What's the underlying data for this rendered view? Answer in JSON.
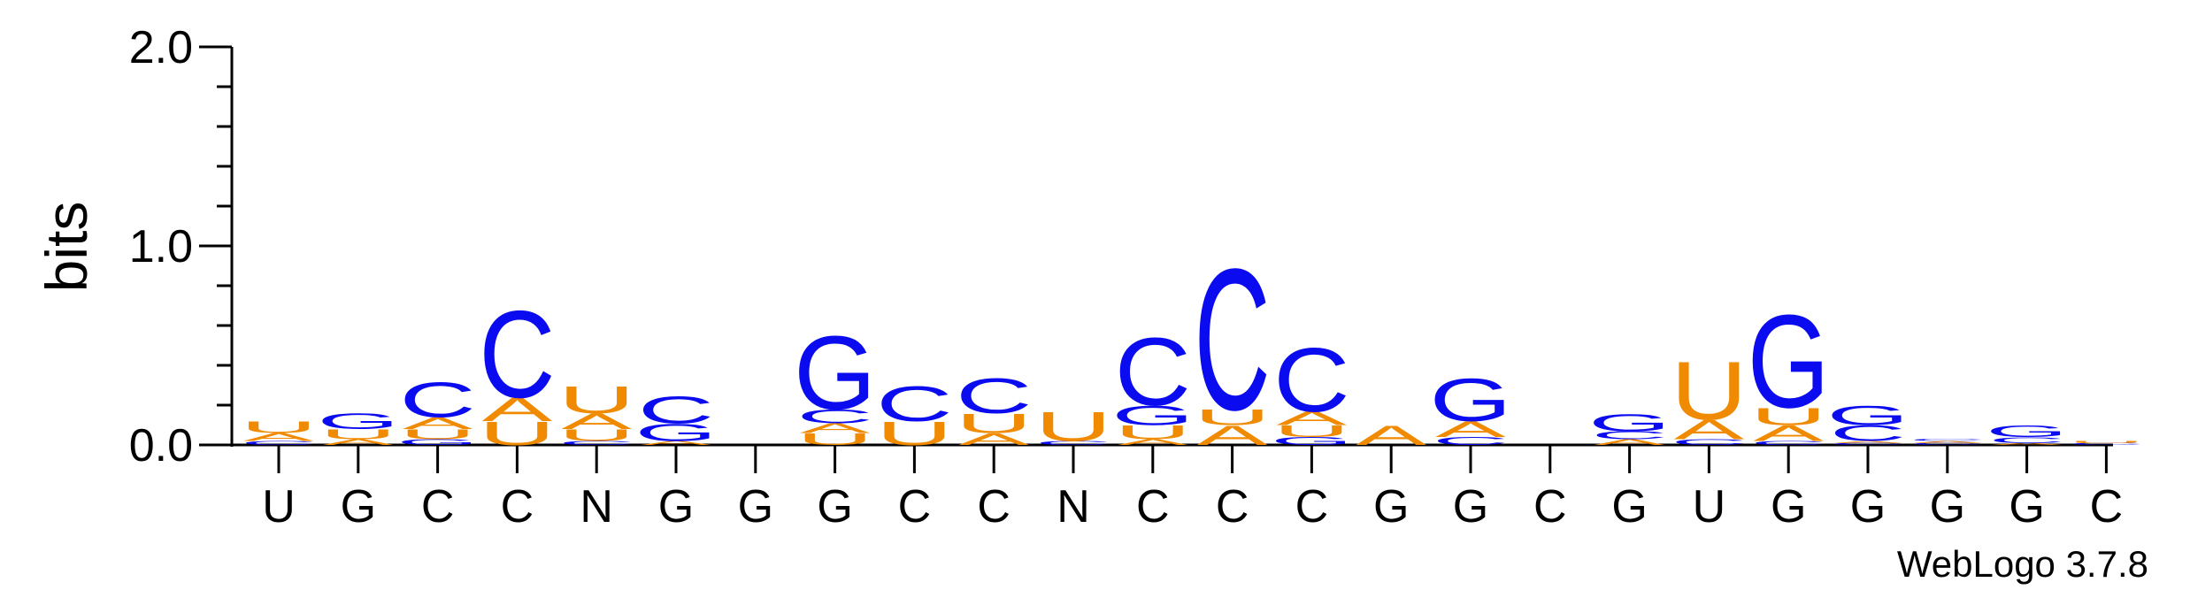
{
  "chart_data": {
    "type": "sequence-logo",
    "ylabel": "bits",
    "ylim": [
      0,
      2.0
    ],
    "y_ticks": [
      "0.0",
      "1.0",
      "2.0"
    ],
    "x_tick_labels": [
      "U",
      "G",
      "C",
      "C",
      "N",
      "G",
      "G",
      "G",
      "C",
      "C",
      "N",
      "C",
      "C",
      "C",
      "G",
      "G",
      "C",
      "G",
      "U",
      "G",
      "G",
      "G",
      "G",
      "C"
    ],
    "credit": "WebLogo 3.7.8",
    "colors": {
      "A": "#f08a00",
      "U": "#f08a00",
      "C": "#0b0bf0",
      "G": "#0b0bf0"
    },
    "positions": [
      [
        {
          "l": "C",
          "h": 0.02
        },
        {
          "l": "A",
          "h": 0.04
        },
        {
          "l": "U",
          "h": 0.06
        }
      ],
      [
        {
          "l": "A",
          "h": 0.03
        },
        {
          "l": "U",
          "h": 0.05
        },
        {
          "l": "G",
          "h": 0.08
        }
      ],
      [
        {
          "l": "G",
          "h": 0.03
        },
        {
          "l": "U",
          "h": 0.05
        },
        {
          "l": "A",
          "h": 0.06
        },
        {
          "l": "C",
          "h": 0.18
        }
      ],
      [
        {
          "l": "U",
          "h": 0.12
        },
        {
          "l": "A",
          "h": 0.12
        },
        {
          "l": "C",
          "h": 0.45
        }
      ],
      [
        {
          "l": "C",
          "h": 0.02
        },
        {
          "l": "U",
          "h": 0.06
        },
        {
          "l": "A",
          "h": 0.08
        },
        {
          "l": "U",
          "h": 0.14
        }
      ],
      [
        {
          "l": "A",
          "h": 0.02
        },
        {
          "l": "G",
          "h": 0.09
        },
        {
          "l": "C",
          "h": 0.14
        }
      ],
      [],
      [
        {
          "l": "U",
          "h": 0.06
        },
        {
          "l": "A",
          "h": 0.05
        },
        {
          "l": "C",
          "h": 0.07
        },
        {
          "l": "G",
          "h": 0.38
        }
      ],
      [
        {
          "l": "U",
          "h": 0.12
        },
        {
          "l": "C",
          "h": 0.18
        }
      ],
      [
        {
          "l": "A",
          "h": 0.06
        },
        {
          "l": "U",
          "h": 0.1
        },
        {
          "l": "C",
          "h": 0.18
        }
      ],
      [
        {
          "l": "C",
          "h": 0.02
        },
        {
          "l": "U",
          "h": 0.15
        }
      ],
      [
        {
          "l": "A",
          "h": 0.03
        },
        {
          "l": "U",
          "h": 0.07
        },
        {
          "l": "G",
          "h": 0.1
        },
        {
          "l": "C",
          "h": 0.35
        }
      ],
      [
        {
          "l": "A",
          "h": 0.1
        },
        {
          "l": "U",
          "h": 0.08
        },
        {
          "l": "C",
          "h": 0.73
        }
      ],
      [
        {
          "l": "G",
          "h": 0.04
        },
        {
          "l": "U",
          "h": 0.06
        },
        {
          "l": "A",
          "h": 0.07
        },
        {
          "l": "C",
          "h": 0.33
        }
      ],
      [
        {
          "l": "A",
          "h": 0.1
        }
      ],
      [
        {
          "l": "C",
          "h": 0.04
        },
        {
          "l": "A",
          "h": 0.08
        },
        {
          "l": "G",
          "h": 0.22
        }
      ],
      [],
      [
        {
          "l": "A",
          "h": 0.03
        },
        {
          "l": "C",
          "h": 0.04
        },
        {
          "l": "G",
          "h": 0.09
        }
      ],
      [
        {
          "l": "C",
          "h": 0.03
        },
        {
          "l": "A",
          "h": 0.1
        },
        {
          "l": "U",
          "h": 0.3
        }
      ],
      [
        {
          "l": "C",
          "h": 0.02
        },
        {
          "l": "A",
          "h": 0.08
        },
        {
          "l": "U",
          "h": 0.09
        },
        {
          "l": "G",
          "h": 0.48
        }
      ],
      [
        {
          "l": "C",
          "h": 0.01
        },
        {
          "l": "A",
          "h": 0.01
        },
        {
          "l": "C",
          "h": 0.08
        },
        {
          "l": "G",
          "h": 0.1
        }
      ],
      [
        {
          "l": "C",
          "h": 0.01
        },
        {
          "l": "A",
          "h": 0.01
        },
        {
          "l": "C",
          "h": 0.01
        }
      ],
      [
        {
          "l": "A",
          "h": 0.01
        },
        {
          "l": "C",
          "h": 0.03
        },
        {
          "l": "G",
          "h": 0.06
        }
      ],
      [
        {
          "l": "C",
          "h": 0.01
        },
        {
          "l": "U",
          "h": 0.01
        }
      ]
    ]
  }
}
